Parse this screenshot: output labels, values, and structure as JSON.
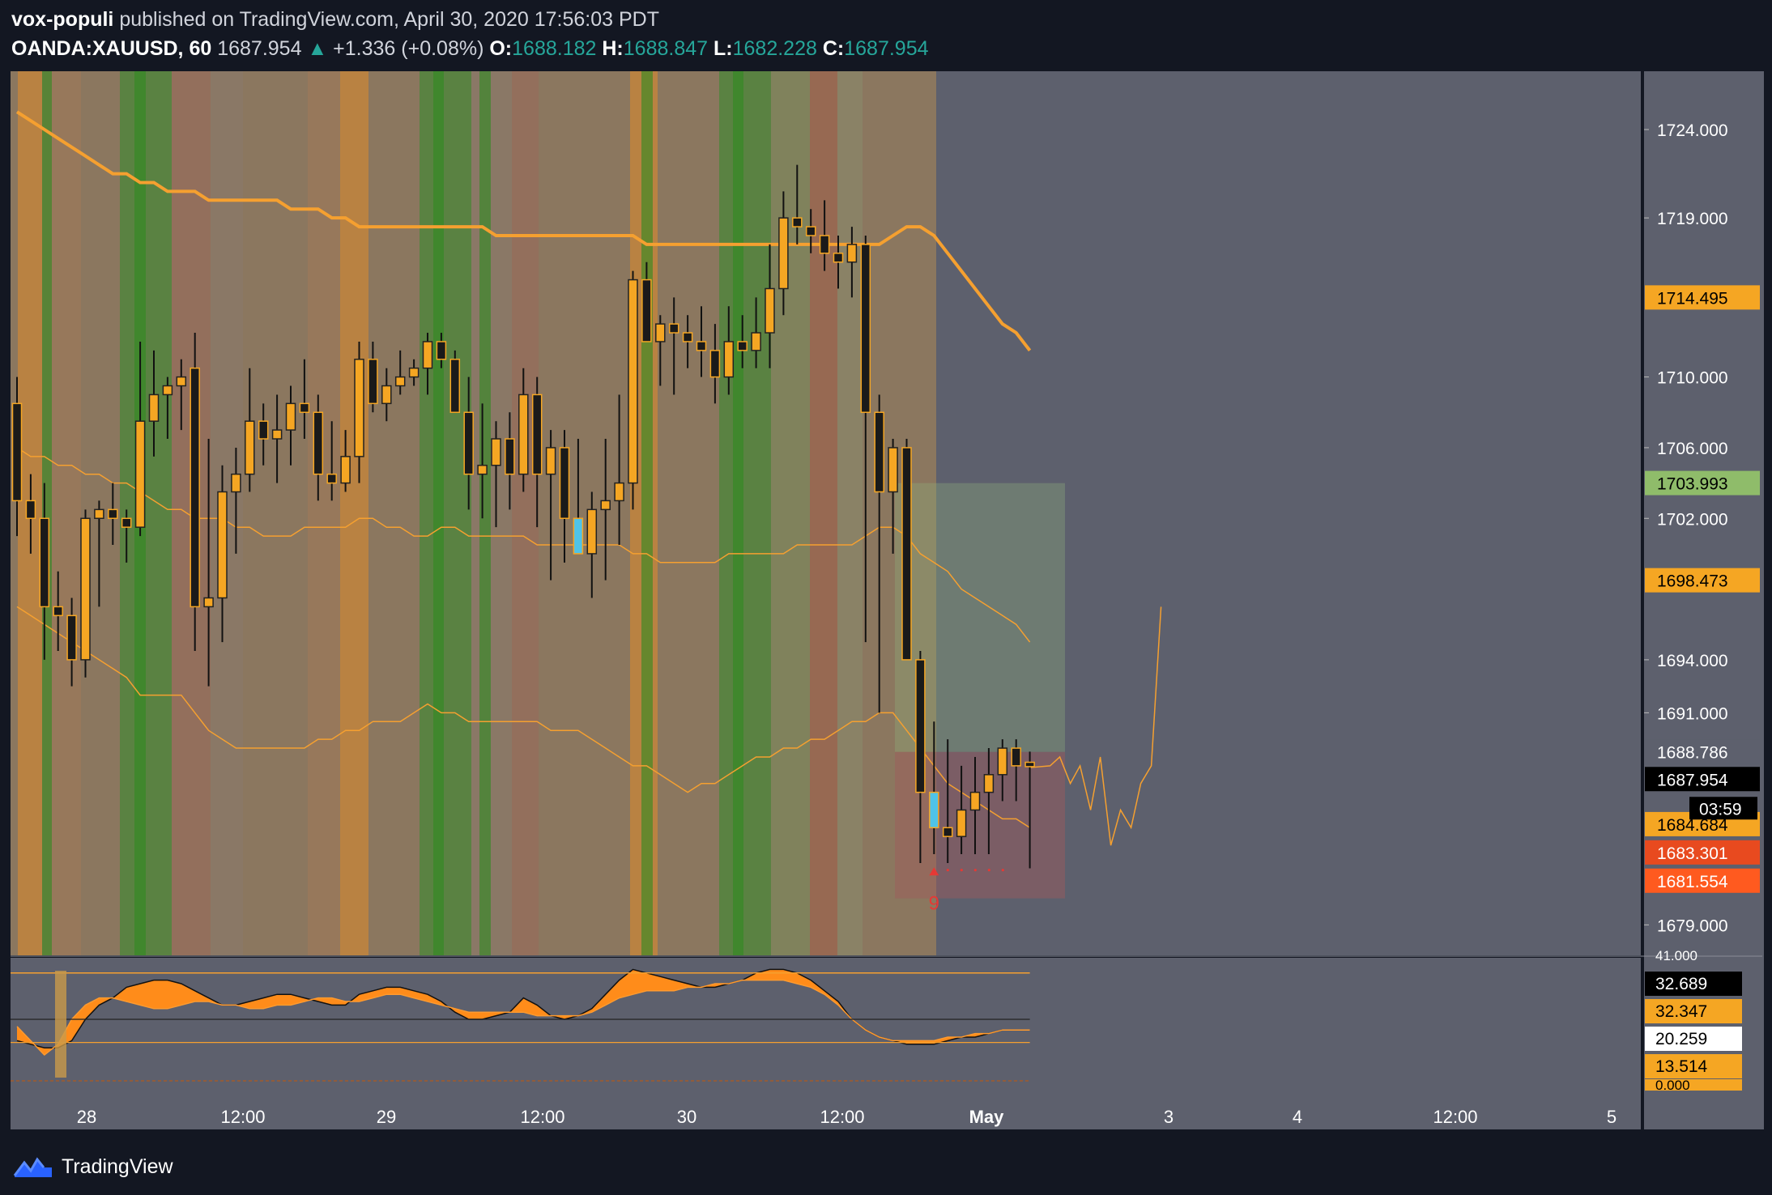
{
  "header": {
    "author": "vox-populi",
    "published_text": "published on TradingView.com, April 30, 2020 17:56:03 PDT",
    "symbol": "OANDA:XAUUSD, 60",
    "last": "1687.954",
    "change_arrow": "▲",
    "change": "+1.336 (+0.08%)",
    "o_label": "O:",
    "o": "1688.182",
    "h_label": "H:",
    "h": "1688.847",
    "l_label": "L:",
    "l": "1682.228",
    "c_label": "C:",
    "c": "1687.954"
  },
  "brand": {
    "name": "TradingView",
    "logo_icon": "tradingview-logo-icon"
  },
  "chart_data": {
    "type": "candlestick",
    "symbol": "OANDA:XAUUSD",
    "interval": "60",
    "x_ticks": [
      "28",
      "12:00",
      "29",
      "12:00",
      "30",
      "12:00",
      "May",
      "3",
      "4",
      "12:00",
      "5"
    ],
    "y_ticks": [
      "1724.000",
      "1719.000",
      "1710.000",
      "1706.000",
      "1702.000",
      "1694.000",
      "1691.000",
      "1679.000"
    ],
    "ylim": [
      1677,
      1727
    ],
    "colors": {
      "up_body": "#f5a623",
      "down_body": "#1a1a1a",
      "wick": "#111111",
      "band": "#f5a030",
      "pane_bg": "#5d606d"
    },
    "candles": [
      [
        1708.5,
        1710.0,
        1701.0,
        1703.0
      ],
      [
        1703.0,
        1704.5,
        1700.0,
        1702.0
      ],
      [
        1702.0,
        1704.0,
        1694.0,
        1697.0
      ],
      [
        1697.0,
        1699.0,
        1694.5,
        1696.5
      ],
      [
        1696.5,
        1697.5,
        1692.5,
        1694.0
      ],
      [
        1694.0,
        1702.5,
        1693.0,
        1702.0
      ],
      [
        1702.0,
        1703.0,
        1697.0,
        1702.5
      ],
      [
        1702.5,
        1704.0,
        1700.5,
        1702.0
      ],
      [
        1702.0,
        1702.5,
        1699.5,
        1701.5
      ],
      [
        1701.5,
        1712.0,
        1701.0,
        1707.5
      ],
      [
        1707.5,
        1711.5,
        1705.5,
        1709.0
      ],
      [
        1709.0,
        1710.0,
        1706.5,
        1709.5
      ],
      [
        1709.5,
        1711.0,
        1707.0,
        1710.0
      ],
      [
        1710.5,
        1712.5,
        1694.5,
        1697.0
      ],
      [
        1697.0,
        1706.5,
        1692.5,
        1697.5
      ],
      [
        1697.5,
        1705.0,
        1695.0,
        1703.5
      ],
      [
        1703.5,
        1706.0,
        1700.0,
        1704.5
      ],
      [
        1704.5,
        1710.5,
        1703.5,
        1707.5
      ],
      [
        1707.5,
        1708.5,
        1705.0,
        1706.5
      ],
      [
        1706.5,
        1709.0,
        1704.0,
        1707.0
      ],
      [
        1707.0,
        1709.5,
        1705.0,
        1708.5
      ],
      [
        1708.5,
        1711.0,
        1706.5,
        1708.0
      ],
      [
        1708.0,
        1709.0,
        1703.0,
        1704.5
      ],
      [
        1704.5,
        1707.5,
        1703.0,
        1704.0
      ],
      [
        1704.0,
        1707.0,
        1703.5,
        1705.5
      ],
      [
        1705.5,
        1712.0,
        1704.0,
        1711.0
      ],
      [
        1711.0,
        1712.0,
        1708.0,
        1708.5
      ],
      [
        1708.5,
        1710.5,
        1707.5,
        1709.5
      ],
      [
        1709.5,
        1711.5,
        1709.0,
        1710.0
      ],
      [
        1710.0,
        1711.0,
        1709.5,
        1710.5
      ],
      [
        1710.5,
        1712.5,
        1709.0,
        1712.0
      ],
      [
        1712.0,
        1712.5,
        1710.5,
        1711.0
      ],
      [
        1711.0,
        1711.5,
        1708.5,
        1708.0
      ],
      [
        1708.0,
        1710.0,
        1702.5,
        1704.5
      ],
      [
        1704.5,
        1708.5,
        1702.0,
        1705.0
      ],
      [
        1705.0,
        1707.5,
        1701.5,
        1706.5
      ],
      [
        1706.5,
        1708.0,
        1702.5,
        1704.5
      ],
      [
        1704.5,
        1710.5,
        1703.5,
        1709.0
      ],
      [
        1709.0,
        1710.0,
        1701.5,
        1704.5
      ],
      [
        1704.5,
        1707.0,
        1698.5,
        1706.0
      ],
      [
        1706.0,
        1707.0,
        1699.5,
        1702.0
      ],
      [
        1702.0,
        1706.5,
        1700.0,
        1700.0
      ],
      [
        1700.0,
        1703.5,
        1697.5,
        1702.5
      ],
      [
        1702.5,
        1706.5,
        1698.5,
        1703.0
      ],
      [
        1703.0,
        1709.0,
        1700.5,
        1704.0
      ],
      [
        1704.0,
        1716.0,
        1702.5,
        1715.5
      ],
      [
        1715.5,
        1716.5,
        1712.0,
        1712.0
      ],
      [
        1712.0,
        1713.5,
        1709.5,
        1713.0
      ],
      [
        1713.0,
        1714.5,
        1709.0,
        1712.5
      ],
      [
        1712.5,
        1713.5,
        1710.5,
        1712.0
      ],
      [
        1712.0,
        1714.0,
        1710.0,
        1711.5
      ],
      [
        1711.5,
        1713.0,
        1708.5,
        1710.0
      ],
      [
        1710.0,
        1714.0,
        1709.0,
        1712.0
      ],
      [
        1712.0,
        1713.5,
        1710.5,
        1711.5
      ],
      [
        1711.5,
        1714.5,
        1710.5,
        1712.5
      ],
      [
        1712.5,
        1717.5,
        1710.5,
        1715.0
      ],
      [
        1715.0,
        1720.5,
        1713.5,
        1719.0
      ],
      [
        1719.0,
        1722.0,
        1717.5,
        1718.5
      ],
      [
        1718.5,
        1719.5,
        1717.0,
        1718.0
      ],
      [
        1718.0,
        1720.0,
        1716.0,
        1717.0
      ],
      [
        1717.0,
        1718.0,
        1715.0,
        1716.5
      ],
      [
        1716.5,
        1718.5,
        1714.5,
        1717.5
      ],
      [
        1717.5,
        1718.0,
        1695.0,
        1708.0
      ],
      [
        1708.0,
        1709.0,
        1691.0,
        1703.5
      ],
      [
        1703.5,
        1706.5,
        1700.0,
        1706.0
      ],
      [
        1706.0,
        1706.5,
        1694.5,
        1694.0
      ],
      [
        1694.0,
        1694.5,
        1682.5,
        1686.5
      ],
      [
        1686.5,
        1690.5,
        1683.0,
        1684.5
      ],
      [
        1684.5,
        1689.5,
        1682.5,
        1684.0
      ],
      [
        1684.0,
        1688.0,
        1683.0,
        1685.5
      ],
      [
        1685.5,
        1688.5,
        1683.0,
        1686.5
      ],
      [
        1686.5,
        1689.0,
        1683.0,
        1687.5
      ],
      [
        1687.5,
        1689.5,
        1686.0,
        1689.0
      ],
      [
        1689.0,
        1689.5,
        1686.0,
        1688.0
      ],
      [
        1688.2,
        1688.8,
        1682.2,
        1687.954
      ]
    ],
    "highlight_candles": [
      41,
      67
    ],
    "upper_band": [
      1725.0,
      1724.5,
      1724.0,
      1723.5,
      1723.0,
      1722.5,
      1722.0,
      1721.5,
      1721.5,
      1721.0,
      1721.0,
      1720.5,
      1720.5,
      1720.5,
      1720.0,
      1720.0,
      1720.0,
      1720.0,
      1720.0,
      1720.0,
      1719.5,
      1719.5,
      1719.5,
      1719.0,
      1719.0,
      1718.5,
      1718.5,
      1718.5,
      1718.5,
      1718.5,
      1718.5,
      1718.5,
      1718.5,
      1718.5,
      1718.5,
      1718.0,
      1718.0,
      1718.0,
      1718.0,
      1718.0,
      1718.0,
      1718.0,
      1718.0,
      1718.0,
      1718.0,
      1718.0,
      1717.5,
      1717.5,
      1717.5,
      1717.5,
      1717.5,
      1717.5,
      1717.5,
      1717.5,
      1717.5,
      1717.5,
      1717.5,
      1717.5,
      1717.5,
      1717.5,
      1717.5,
      1717.5,
      1717.5,
      1717.5,
      1718.0,
      1718.5,
      1718.5,
      1718.0,
      1717.0,
      1716.0,
      1715.0,
      1714.0,
      1713.0,
      1712.5,
      1711.5
    ],
    "middle_band": [
      1706.0,
      1705.5,
      1705.5,
      1705.0,
      1705.0,
      1704.5,
      1704.5,
      1704.0,
      1704.0,
      1703.5,
      1703.0,
      1702.5,
      1702.5,
      1702.0,
      1702.0,
      1702.0,
      1701.5,
      1701.5,
      1701.0,
      1701.0,
      1701.0,
      1701.5,
      1701.5,
      1701.5,
      1701.5,
      1702.0,
      1702.0,
      1701.5,
      1701.5,
      1701.0,
      1701.0,
      1701.5,
      1701.5,
      1701.0,
      1701.0,
      1701.0,
      1701.0,
      1701.0,
      1700.5,
      1700.5,
      1700.5,
      1700.5,
      1700.5,
      1700.5,
      1700.5,
      1700.0,
      1700.0,
      1699.5,
      1699.5,
      1699.5,
      1699.5,
      1699.5,
      1700.0,
      1700.0,
      1700.0,
      1700.0,
      1700.0,
      1700.5,
      1700.5,
      1700.5,
      1700.5,
      1700.5,
      1701.0,
      1701.5,
      1701.5,
      1701.0,
      1700.0,
      1699.5,
      1699.0,
      1698.0,
      1697.5,
      1697.0,
      1696.5,
      1696.0,
      1695.0
    ],
    "lower_band": [
      1697.0,
      1696.5,
      1696.0,
      1695.5,
      1695.0,
      1694.5,
      1694.0,
      1693.5,
      1693.0,
      1692.0,
      1692.0,
      1692.0,
      1692.0,
      1691.0,
      1690.0,
      1689.5,
      1689.0,
      1689.0,
      1689.0,
      1689.0,
      1689.0,
      1689.0,
      1689.5,
      1689.5,
      1690.0,
      1690.0,
      1690.5,
      1690.5,
      1690.5,
      1691.0,
      1691.5,
      1691.0,
      1691.0,
      1690.5,
      1690.5,
      1690.5,
      1690.5,
      1690.5,
      1690.5,
      1690.0,
      1690.0,
      1690.0,
      1689.5,
      1689.0,
      1688.5,
      1688.0,
      1688.0,
      1687.5,
      1687.0,
      1686.5,
      1687.0,
      1687.0,
      1687.5,
      1688.0,
      1688.5,
      1688.5,
      1689.0,
      1689.0,
      1689.5,
      1689.5,
      1690.0,
      1690.5,
      1690.5,
      1691.0,
      1691.0,
      1690.0,
      1689.0,
      1688.0,
      1687.0,
      1686.5,
      1686.0,
      1685.5,
      1685.0,
      1685.0,
      1684.5
    ],
    "projection": [
      [
        1688.0,
        1688.5
      ],
      [
        1687.0,
        1688.0
      ],
      [
        1685.5,
        1688.5
      ],
      [
        1683.5,
        1685.5
      ],
      [
        1684.5,
        1687.0
      ],
      [
        1688.0,
        1697.0
      ]
    ],
    "position": {
      "entry": 1688.786,
      "target": 1703.993,
      "stop": 1683.301
    },
    "td_count_label": "9",
    "price_labels": [
      {
        "value": "1714.495",
        "price": 1714.5,
        "bg": "#f5a623",
        "fg": "#000000"
      },
      {
        "value": "1703.993",
        "price": 1704.0,
        "bg": "#8fbc6a",
        "fg": "#000000"
      },
      {
        "value": "1698.473",
        "price": 1698.5,
        "bg": "#f5a623",
        "fg": "#000000"
      },
      {
        "value": "1688.786",
        "price": 1688.8,
        "bg": "#5d606d",
        "fg": "#ffffff"
      },
      {
        "value": "1687.954",
        "price": 1687.25,
        "bg": "#000000",
        "fg": "#ffffff"
      },
      {
        "value": "1684.684",
        "price": 1684.7,
        "bg": "#f5a623",
        "fg": "#000000"
      },
      {
        "value": "1683.301",
        "price": 1683.1,
        "bg": "#e84a1f",
        "fg": "#ffffff"
      },
      {
        "value": "1681.554",
        "price": 1681.5,
        "bg": "#ff5a1f",
        "fg": "#ffffff"
      }
    ],
    "countdown": "03:59",
    "oscillator": {
      "labels": [
        {
          "value": "32.689",
          "bg": "#000000",
          "fg": "#ffffff"
        },
        {
          "value": "32.347",
          "bg": "#f5a623",
          "fg": "#000000"
        },
        {
          "value": "20.259",
          "bg": "#ffffff",
          "fg": "#000000"
        },
        {
          "value": "13.514",
          "bg": "#f5a623",
          "fg": "#000000"
        }
      ],
      "partial_top_label": "41.000",
      "partial_bottom_label": "0.000",
      "line_a": [
        14,
        13,
        12,
        12,
        14,
        20,
        24,
        26,
        29,
        30,
        31,
        31,
        30,
        28,
        26,
        24,
        24,
        25,
        26,
        27,
        27,
        26,
        25,
        24,
        24,
        27,
        28,
        29,
        29,
        28,
        27,
        25,
        22,
        20,
        20,
        21,
        22,
        26,
        24,
        21,
        20,
        21,
        23,
        27,
        31,
        34,
        33,
        32,
        31,
        30,
        29,
        29,
        30,
        31,
        33,
        34,
        34,
        33,
        31,
        28,
        25,
        20,
        17,
        15,
        14,
        13,
        13,
        13,
        14,
        15,
        15,
        16,
        17,
        17,
        17
      ],
      "line_b": [
        18,
        14,
        10,
        13,
        20,
        24,
        26,
        26,
        25,
        24,
        23,
        23,
        24,
        25,
        25,
        24,
        24,
        23,
        23,
        24,
        24,
        25,
        26,
        26,
        25,
        25,
        26,
        27,
        27,
        26,
        25,
        24,
        23,
        22,
        22,
        22,
        22,
        22,
        21,
        21,
        21,
        21,
        22,
        24,
        26,
        27,
        28,
        28,
        28,
        29,
        29,
        30,
        30,
        31,
        31,
        31,
        31,
        30,
        29,
        27,
        24,
        20,
        17,
        15,
        14,
        14,
        14,
        14,
        15,
        15,
        16,
        16,
        17,
        17,
        17
      ]
    }
  }
}
